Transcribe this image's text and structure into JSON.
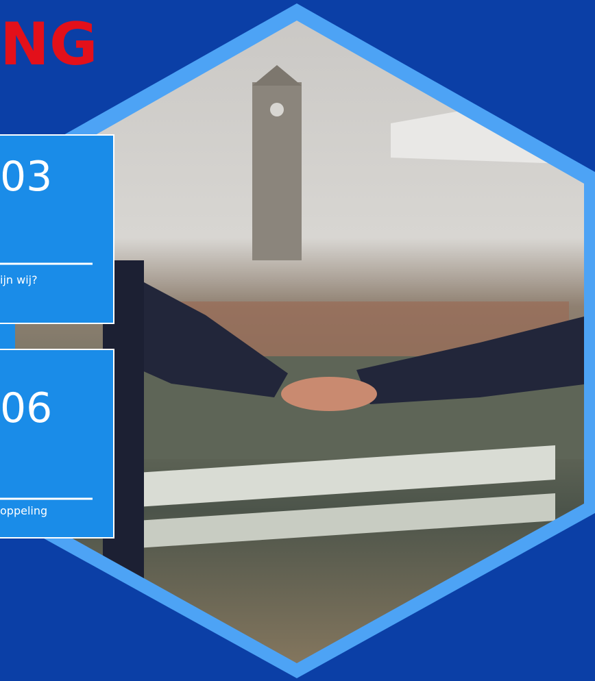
{
  "header": {
    "title": "NG"
  },
  "cards": [
    {
      "number": "03",
      "label": "ijn wij?"
    },
    {
      "number": "06",
      "label": "oppeling"
    }
  ]
}
